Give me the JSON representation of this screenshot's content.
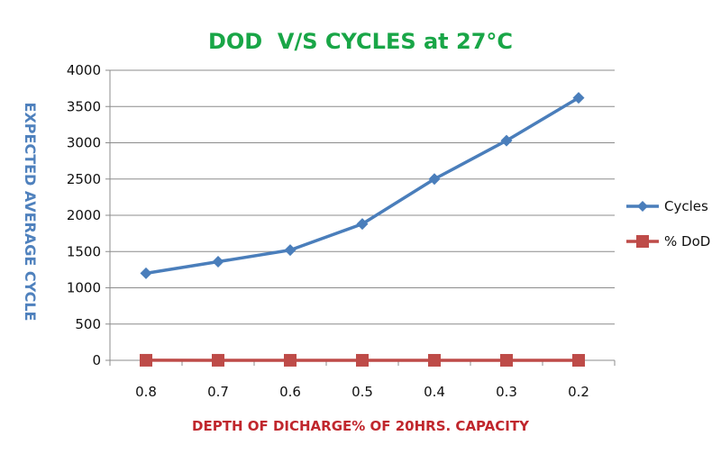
{
  "chart_data": {
    "type": "line",
    "title": "DOD  V/S CYCLES at 27°C",
    "xlabel": "DEPTH OF DICHARGE% OF 20HRS. CAPACITY",
    "ylabel": "EXPECTED AVERAGE CYCLE",
    "categories": [
      "0.8",
      "0.7",
      "0.6",
      "0.5",
      "0.4",
      "0.3",
      "0.2"
    ],
    "ylim": [
      0,
      4000
    ],
    "yticks": [
      "0",
      "500",
      "1000",
      "1500",
      "2000",
      "2500",
      "3000",
      "3500",
      "4000"
    ],
    "grid": true,
    "legend_position": "right",
    "series": [
      {
        "name": "Cycles",
        "values": [
          1200,
          1360,
          1520,
          1880,
          2500,
          3030,
          3620
        ],
        "color": "#4a7ebb",
        "marker": "diamond"
      },
      {
        "name": "% DoD",
        "values": [
          0.8,
          0.7,
          0.6,
          0.5,
          0.4,
          0.3,
          0.2
        ],
        "color": "#be4b48",
        "marker": "square"
      }
    ],
    "colors": {
      "title": "#19a647",
      "axis_label": "#4f81bd",
      "xlabel": "#c0272d"
    }
  }
}
